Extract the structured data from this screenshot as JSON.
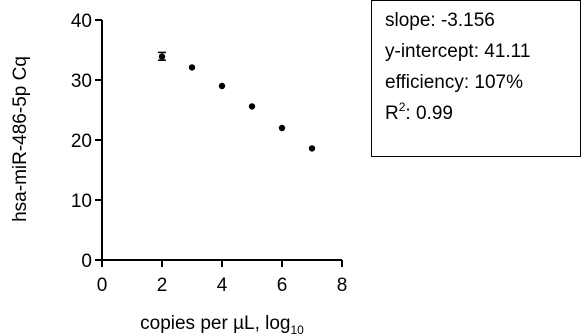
{
  "chart_data": {
    "type": "scatter",
    "title": "",
    "xlabel": "copies per µL, log",
    "xlabel_subscript": "10",
    "ylabel": "hsa-miR-486-5p Cq",
    "xlim": [
      0,
      8
    ],
    "ylim": [
      0,
      40
    ],
    "x_ticks": [
      "0",
      "2",
      "4",
      "6",
      "8"
    ],
    "y_ticks": [
      "0",
      "10",
      "20",
      "30",
      "40"
    ],
    "grid": false,
    "series": [
      {
        "points": [
          {
            "x": 2,
            "y": 33.9
          },
          {
            "x": 3,
            "y": 32.1
          },
          {
            "x": 4,
            "y": 29.0
          },
          {
            "x": 5,
            "y": 25.6
          },
          {
            "x": 6,
            "y": 22.0
          },
          {
            "x": 7,
            "y": 18.6
          }
        ],
        "error_bars": [
          {
            "x": 2,
            "low": 33.3,
            "high": 34.6
          }
        ]
      }
    ],
    "annotation": {
      "slope": {
        "label": "slope:",
        "value": "-3.156"
      },
      "intercept": {
        "label": "y-intercept:",
        "value": "41.11"
      },
      "efficiency": {
        "label": "efficiency:",
        "value": "107%"
      },
      "r2": {
        "label_main": "R",
        "label_sup": "2",
        "label_suffix": ":",
        "value": "0.99"
      }
    }
  },
  "colors": {
    "axis": "#000000",
    "points": "#000000",
    "background": "#ffffff"
  }
}
